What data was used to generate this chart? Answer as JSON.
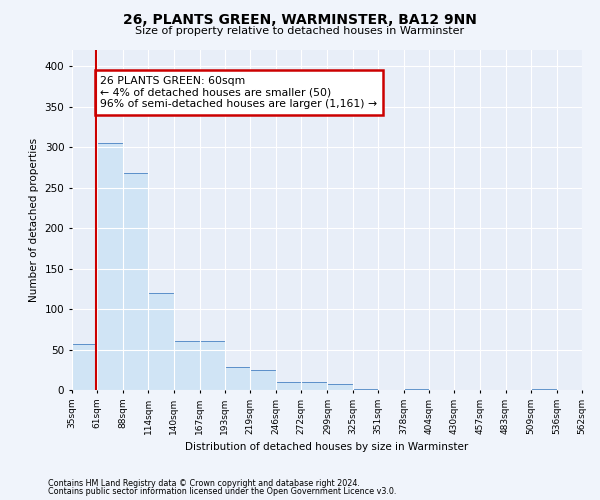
{
  "title": "26, PLANTS GREEN, WARMINSTER, BA12 9NN",
  "subtitle": "Size of property relative to detached houses in Warminster",
  "xlabel": "Distribution of detached houses by size in Warminster",
  "ylabel": "Number of detached properties",
  "footnote1": "Contains HM Land Registry data © Crown copyright and database right 2024.",
  "footnote2": "Contains public sector information licensed under the Open Government Licence v3.0.",
  "annotation_title": "26 PLANTS GREEN: 60sqm",
  "annotation_line1": "← 4% of detached houses are smaller (50)",
  "annotation_line2": "96% of semi-detached houses are larger (1,161) →",
  "property_size": 60,
  "bar_color": "#d0e4f5",
  "bar_edge_color": "#5b8fc9",
  "vline_color": "#cc0000",
  "annotation_box_color": "#cc0000",
  "bin_edges": [
    35,
    61,
    88,
    114,
    140,
    167,
    193,
    219,
    246,
    272,
    299,
    325,
    351,
    378,
    404,
    430,
    457,
    483,
    509,
    536,
    562
  ],
  "bar_heights": [
    57,
    305,
    268,
    120,
    60,
    60,
    28,
    25,
    10,
    10,
    7,
    1,
    0,
    1,
    0,
    0,
    0,
    0,
    1,
    0
  ],
  "ylim": [
    0,
    420
  ],
  "yticks": [
    0,
    50,
    100,
    150,
    200,
    250,
    300,
    350,
    400
  ],
  "background_color": "#f0f4fb",
  "plot_bg_color": "#e8eef8",
  "grid_color": "#ffffff"
}
